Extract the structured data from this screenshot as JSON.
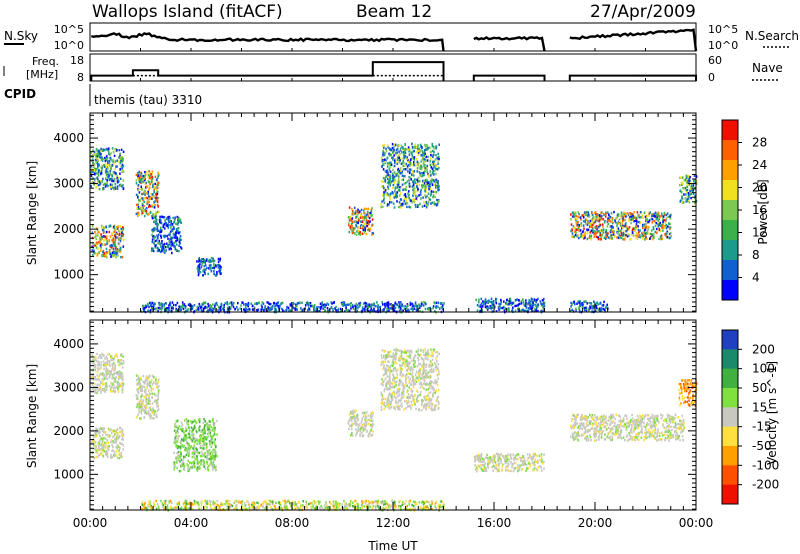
{
  "header": {
    "station": "Wallops Island (fitACF)",
    "beam": "Beam 12",
    "date": "27/Apr/2009"
  },
  "strips": {
    "noise": {
      "left_label": "N.Sky",
      "left_ticks": [
        "10^5",
        "10^0"
      ],
      "right_label": "N.Search",
      "right_ticks": [
        "10^5",
        "10^0"
      ]
    },
    "freq": {
      "left_label_1": "Freq.",
      "left_label_2": "[MHz]",
      "left_ticks": [
        "18",
        "8"
      ],
      "right_label": "Nave",
      "right_ticks": [
        "60",
        "0"
      ]
    },
    "cpid": {
      "label": "CPID",
      "value": "themis (tau) 3310"
    }
  },
  "chart_data": [
    {
      "type": "heatmap",
      "title": "",
      "ylabel": "Slant Range [km]",
      "xlabel": "",
      "ylim": [
        180,
        4550
      ],
      "xlim_hours": [
        0,
        24
      ],
      "yticks": [
        "1000",
        "2000",
        "3000",
        "4000"
      ],
      "colorbar": {
        "label": "Power [dB]",
        "ticks": [
          "4",
          "8",
          "12",
          "16",
          "20",
          "24",
          "28"
        ],
        "range": [
          0,
          32
        ],
        "colors": [
          "#0000ff",
          "#1060d0",
          "#1c9a8a",
          "#3cb04a",
          "#7cc850",
          "#f0e020",
          "#ffa000",
          "#ff6000",
          "#f01000"
        ]
      },
      "echo_regions": [
        {
          "t": [
            0.05,
            1.3
          ],
          "r": [
            1400,
            2100
          ],
          "level": "high"
        },
        {
          "t": [
            0.0,
            1.3
          ],
          "r": [
            2900,
            3800
          ],
          "level": "med"
        },
        {
          "t": [
            1.8,
            2.7
          ],
          "r": [
            2300,
            3300
          ],
          "level": "high"
        },
        {
          "t": [
            2.4,
            3.6
          ],
          "r": [
            1500,
            2300
          ],
          "level": "low"
        },
        {
          "t": [
            4.2,
            5.2
          ],
          "r": [
            1000,
            1400
          ],
          "level": "low"
        },
        {
          "t": [
            10.2,
            11.2
          ],
          "r": [
            1900,
            2500
          ],
          "level": "high"
        },
        {
          "t": [
            11.5,
            13.8
          ],
          "r": [
            2500,
            3900
          ],
          "level": "med"
        },
        {
          "t": [
            19.0,
            23.0
          ],
          "r": [
            1800,
            2400
          ],
          "level": "high"
        },
        {
          "t": [
            23.3,
            24.0
          ],
          "r": [
            2600,
            3200
          ],
          "level": "med"
        },
        {
          "t": [
            2.0,
            14.0
          ],
          "r": [
            200,
            420
          ],
          "level": "low"
        },
        {
          "t": [
            15.2,
            18.0
          ],
          "r": [
            200,
            500
          ],
          "level": "low"
        },
        {
          "t": [
            19.0,
            20.5
          ],
          "r": [
            200,
            450
          ],
          "level": "low"
        }
      ]
    },
    {
      "type": "heatmap",
      "title": "",
      "ylabel": "Slant Range [km]",
      "xlabel": "Time UT",
      "ylim": [
        180,
        4550
      ],
      "xlim_hours": [
        0,
        24
      ],
      "xticks": [
        "00:00",
        "04:00",
        "08:00",
        "12:00",
        "16:00",
        "20:00",
        "00:00"
      ],
      "yticks": [
        "1000",
        "2000",
        "3000",
        "4000"
      ],
      "colorbar": {
        "label": "Velocity [m s^-1]",
        "ticks": [
          "200",
          "100",
          "50",
          "15",
          "-15",
          "-50",
          "-100",
          "-200"
        ],
        "colors": [
          "#2040c0",
          "#1a8a6a",
          "#40b040",
          "#80e040",
          "#c8c8c0",
          "#ffe040",
          "#ffa000",
          "#ff5000",
          "#f01000"
        ]
      },
      "echo_regions": [
        {
          "t": [
            0.05,
            1.3
          ],
          "r": [
            1400,
            2100
          ],
          "level": "ground"
        },
        {
          "t": [
            0.0,
            1.3
          ],
          "r": [
            2900,
            3800
          ],
          "level": "ground"
        },
        {
          "t": [
            1.8,
            2.7
          ],
          "r": [
            2300,
            3300
          ],
          "level": "ground"
        },
        {
          "t": [
            3.3,
            5.0
          ],
          "r": [
            1100,
            2300
          ],
          "level": "positive"
        },
        {
          "t": [
            10.2,
            11.2
          ],
          "r": [
            1900,
            2500
          ],
          "level": "ground"
        },
        {
          "t": [
            11.5,
            13.8
          ],
          "r": [
            2500,
            3900
          ],
          "level": "ground"
        },
        {
          "t": [
            19.0,
            23.5
          ],
          "r": [
            1800,
            2400
          ],
          "level": "ground"
        },
        {
          "t": [
            2.0,
            14.0
          ],
          "r": [
            200,
            420
          ],
          "level": "mixed"
        },
        {
          "t": [
            15.2,
            18.0
          ],
          "r": [
            1100,
            1500
          ],
          "level": "ground"
        },
        {
          "t": [
            23.3,
            24.0
          ],
          "r": [
            2600,
            3200
          ],
          "level": "negative"
        }
      ]
    }
  ]
}
